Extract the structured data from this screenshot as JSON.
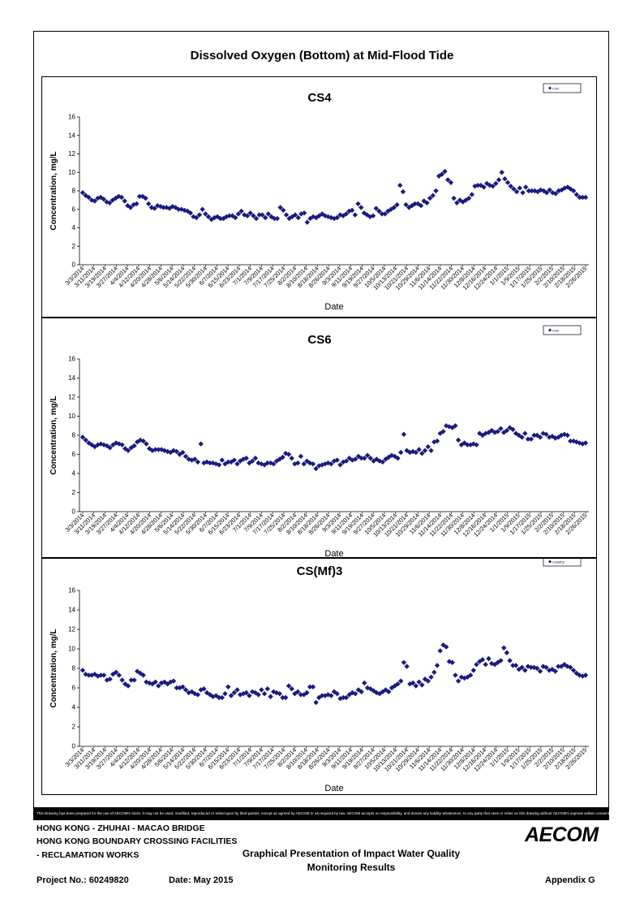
{
  "page": {
    "main_title": "Dissolved Oxygen (Bottom) at Mid-Flood Tide",
    "disclaimer": "This Drawing has been prepared for the use of AECOM's client. It may not be used, modified, reproduced or relied upon by third parties, except as agreed by AECOM or as required by law. AECOM accepts no responsibility, and denies any liability whatsoever, to any party that uses or relies on this drawing without AECOM's express written consent."
  },
  "footer": {
    "line1": "HONG KONG - ZHUHAI - MACAO BRIDGE",
    "line2": "HONG KONG BOUNDARY CROSSING FACILITIES",
    "line3": "- RECLAMATION WORKS",
    "center1": "Graphical Presentation of Impact Water Quality",
    "center2": "Monitoring Results",
    "project": "Project No.: 60249820",
    "date": "Date: May 2015",
    "appendix": "Appendix G",
    "logo": "AECOM"
  },
  "chart_data": [
    {
      "type": "scatter",
      "title": "CS4",
      "xlabel": "Date",
      "ylabel": "Concentration, mg/L",
      "ylim": [
        0,
        16
      ],
      "yticks": [
        0,
        2,
        4,
        6,
        8,
        10,
        12,
        14,
        16
      ],
      "xticks": [
        "3/3/2014",
        "3/11/2014",
        "3/19/2014",
        "3/27/2014",
        "4/4/2014",
        "4/12/2014",
        "4/20/2014",
        "4/28/2014",
        "5/6/2014",
        "5/14/2014",
        "5/22/2014",
        "5/30/2014",
        "6/7/2014",
        "6/15/2014",
        "6/23/2014",
        "7/1/2014",
        "7/9/2014",
        "7/17/2014",
        "7/25/2014",
        "8/2/2014",
        "8/10/2014",
        "8/18/2014",
        "8/26/2014",
        "9/3/2014",
        "9/11/2014",
        "9/19/2014",
        "9/27/2014",
        "10/5/2014",
        "10/13/2014",
        "10/21/2014",
        "10/29/2014",
        "11/6/2014",
        "11/14/2014",
        "11/22/2014",
        "11/30/2014",
        "12/8/2014",
        "12/16/2014",
        "12/24/2014",
        "1/1/2015",
        "1/9/2015",
        "1/17/2015",
        "1/25/2015",
        "2/2/2015",
        "2/10/2015",
        "2/18/2015",
        "2/26/2015"
      ],
      "legend": {
        "label": "CS4",
        "position": "top-right"
      },
      "grid": false,
      "series": [
        {
          "name": "CS4",
          "color": "#1a1a80",
          "marker": "diamond",
          "y": [
            7.8,
            7.5,
            7.3,
            7.0,
            6.9,
            7.2,
            7.3,
            7.1,
            6.8,
            6.7,
            7.0,
            7.2,
            7.4,
            7.3,
            6.9,
            6.4,
            6.2,
            6.5,
            6.6,
            7.4,
            7.4,
            7.2,
            6.6,
            6.2,
            6.1,
            6.4,
            6.3,
            6.2,
            6.2,
            6.1,
            6.3,
            6.2,
            6.0,
            6.0,
            5.9,
            5.8,
            5.6,
            5.2,
            5.1,
            5.4,
            6.0,
            5.5,
            5.2,
            4.9,
            5.1,
            5.2,
            5.0,
            5.0,
            5.2,
            5.3,
            5.3,
            5.1,
            5.5,
            5.8,
            5.4,
            5.3,
            5.6,
            5.3,
            5.0,
            5.4,
            5.4,
            5.1,
            5.5,
            5.2,
            5.0,
            5.0,
            6.2,
            5.9,
            5.4,
            5.0,
            5.2,
            5.4,
            5.1,
            5.5,
            5.6,
            4.6,
            5.0,
            5.2,
            5.1,
            5.3,
            5.5,
            5.3,
            5.2,
            5.1,
            5.0,
            5.1,
            5.4,
            5.3,
            5.5,
            5.8,
            5.9,
            5.4,
            6.6,
            6.2,
            5.6,
            5.4,
            5.2,
            5.3,
            6.1,
            5.8,
            5.5,
            5.5,
            5.8,
            6.0,
            6.2,
            6.5,
            8.6,
            7.9,
            6.5,
            6.2,
            6.4,
            6.6,
            6.6,
            6.4,
            6.9,
            6.7,
            7.2,
            7.5,
            8.0,
            9.6,
            9.8,
            10.1,
            9.2,
            8.9,
            7.2,
            6.7,
            7.0,
            6.8,
            7.0,
            7.2,
            7.6,
            8.5,
            8.6,
            8.6,
            8.4,
            8.8,
            8.6,
            8.5,
            8.8,
            9.2,
            10.0,
            9.3,
            8.9,
            8.5,
            8.2,
            7.9,
            8.3,
            7.8,
            8.4,
            8.0,
            8.0,
            8.0,
            7.9,
            8.1,
            8.0,
            7.8,
            8.1,
            7.8,
            7.7,
            8.0,
            8.1,
            8.3,
            8.4,
            8.2,
            8.0,
            7.6,
            7.3,
            7.3,
            7.3
          ]
        }
      ]
    },
    {
      "type": "scatter",
      "title": "CS6",
      "xlabel": "Date",
      "ylabel": "Concentration, mg/L",
      "ylim": [
        0,
        16
      ],
      "yticks": [
        0,
        2,
        4,
        6,
        8,
        10,
        12,
        14,
        16
      ],
      "xticks": [
        "3/3/2014",
        "3/11/2014",
        "3/19/2014",
        "3/27/2014",
        "4/4/2014",
        "4/12/2014",
        "4/20/2014",
        "4/28/2014",
        "5/6/2014",
        "5/14/2014",
        "5/22/2014",
        "5/30/2014",
        "6/7/2014",
        "6/15/2014",
        "6/23/2014",
        "7/1/2014",
        "7/9/2014",
        "7/17/2014",
        "7/25/2014",
        "8/2/2014",
        "8/10/2014",
        "8/18/2014",
        "8/26/2014",
        "9/3/2014",
        "9/11/2014",
        "9/19/2014",
        "9/27/2014",
        "10/5/2014",
        "10/13/2014",
        "10/21/2014",
        "10/29/2014",
        "11/6/2014",
        "11/14/2014",
        "11/22/2014",
        "11/30/2014",
        "12/8/2014",
        "12/16/2014",
        "12/24/2014",
        "1/1/2015",
        "1/9/2015",
        "1/17/2015",
        "1/25/2015",
        "2/2/2015",
        "2/10/2015",
        "2/18/2015",
        "2/26/2015"
      ],
      "legend": {
        "label": "CS6",
        "position": "top-right"
      },
      "grid": false,
      "series": [
        {
          "name": "CS6",
          "color": "#1a1a80",
          "marker": "diamond",
          "y": [
            7.8,
            7.5,
            7.2,
            7.0,
            6.8,
            7.0,
            7.1,
            7.0,
            6.9,
            6.7,
            7.0,
            7.2,
            7.1,
            7.0,
            6.6,
            6.4,
            6.7,
            6.9,
            7.3,
            7.5,
            7.4,
            7.1,
            6.6,
            6.4,
            6.5,
            6.5,
            6.5,
            6.4,
            6.3,
            6.2,
            6.4,
            6.3,
            6.0,
            6.2,
            5.8,
            5.5,
            5.4,
            5.5,
            5.2,
            7.1,
            5.1,
            5.2,
            5.1,
            5.1,
            5.0,
            4.9,
            5.4,
            5.0,
            5.2,
            5.2,
            5.4,
            5.0,
            5.3,
            5.5,
            5.6,
            5.1,
            5.3,
            5.6,
            5.1,
            5.0,
            4.9,
            5.1,
            5.1,
            5.0,
            5.3,
            5.5,
            5.7,
            6.1,
            6.0,
            5.6,
            5.0,
            5.1,
            5.8,
            5.0,
            5.3,
            5.1,
            5.0,
            4.5,
            4.8,
            4.9,
            5.0,
            5.1,
            5.0,
            5.3,
            5.4,
            4.9,
            5.2,
            5.3,
            5.6,
            5.4,
            5.5,
            5.8,
            5.6,
            5.6,
            5.9,
            5.6,
            5.3,
            5.5,
            5.3,
            5.2,
            5.5,
            5.7,
            5.9,
            5.8,
            5.6,
            6.2,
            8.1,
            6.4,
            6.2,
            6.3,
            6.2,
            6.5,
            6.1,
            6.4,
            6.8,
            6.4,
            7.3,
            7.4,
            8.2,
            8.4,
            9.0,
            8.9,
            8.8,
            9.0,
            7.5,
            7.0,
            7.2,
            7.0,
            7.0,
            7.1,
            7.0,
            8.2,
            8.0,
            8.2,
            8.3,
            8.5,
            8.3,
            8.4,
            8.7,
            8.3,
            8.5,
            8.8,
            8.6,
            8.2,
            8.0,
            7.8,
            8.2,
            7.6,
            7.6,
            8.0,
            8.0,
            7.8,
            8.2,
            8.1,
            7.8,
            7.9,
            7.7,
            7.8,
            8.0,
            8.1,
            8.0,
            7.4,
            7.4,
            7.3,
            7.2,
            7.1,
            7.2
          ]
        }
      ]
    },
    {
      "type": "scatter",
      "title": "CS(Mf)3",
      "xlabel": "Date",
      "ylabel": "Concentration, mg/L",
      "ylim": [
        0,
        16
      ],
      "yticks": [
        0,
        2,
        4,
        6,
        8,
        10,
        12,
        14,
        16
      ],
      "xticks": [
        "3/3/2014",
        "3/11/2014",
        "3/19/2014",
        "3/27/2014",
        "4/4/2014",
        "4/12/2014",
        "4/20/2014",
        "4/28/2014",
        "5/6/2014",
        "5/14/2014",
        "5/22/2014",
        "5/30/2014",
        "6/7/2014",
        "6/15/2014",
        "6/23/2014",
        "7/1/2014",
        "7/9/2014",
        "7/17/2014",
        "7/25/2014",
        "8/2/2014",
        "8/10/2014",
        "8/18/2014",
        "8/26/2014",
        "9/3/2014",
        "9/11/2014",
        "9/19/2014",
        "9/27/2014",
        "10/5/2014",
        "10/13/2014",
        "10/21/2014",
        "10/29/2014",
        "11/6/2014",
        "11/14/2014",
        "11/22/2014",
        "11/30/2014",
        "12/8/2014",
        "12/16/2014",
        "12/24/2014",
        "1/1/2015",
        "1/9/2015",
        "1/17/2015",
        "1/25/2015",
        "2/2/2015",
        "2/10/2015",
        "2/18/2015",
        "2/26/2015"
      ],
      "legend": {
        "label": "CS(Mf)3",
        "position": "top-right"
      },
      "grid": false,
      "series": [
        {
          "name": "CS(Mf)3",
          "color": "#1a1a80",
          "marker": "diamond",
          "y": [
            7.8,
            7.4,
            7.3,
            7.3,
            7.4,
            7.2,
            7.3,
            7.3,
            6.8,
            6.9,
            7.4,
            7.6,
            7.3,
            6.8,
            6.4,
            6.2,
            6.8,
            6.8,
            7.7,
            7.5,
            7.3,
            6.6,
            6.5,
            6.4,
            6.6,
            6.2,
            6.5,
            6.6,
            6.4,
            6.6,
            6.7,
            6.0,
            6.0,
            6.1,
            5.8,
            5.5,
            5.6,
            5.4,
            5.3,
            5.8,
            5.9,
            5.5,
            5.3,
            5.1,
            5.2,
            5.0,
            5.0,
            5.4,
            6.1,
            5.2,
            5.5,
            5.8,
            5.3,
            5.4,
            5.5,
            5.2,
            5.6,
            5.5,
            5.3,
            5.8,
            5.4,
            5.9,
            5.1,
            5.6,
            5.5,
            5.4,
            5.0,
            5.0,
            6.2,
            5.9,
            5.4,
            5.6,
            5.3,
            5.3,
            5.5,
            6.1,
            6.1,
            4.5,
            5.0,
            5.2,
            5.2,
            5.3,
            5.2,
            5.6,
            5.4,
            4.9,
            5.0,
            5.0,
            5.3,
            5.5,
            5.4,
            5.8,
            5.6,
            6.5,
            6.0,
            5.9,
            5.7,
            5.5,
            5.4,
            5.6,
            5.8,
            5.6,
            6.0,
            6.2,
            6.4,
            6.7,
            8.6,
            8.2,
            6.4,
            6.5,
            6.2,
            6.6,
            6.3,
            6.9,
            6.7,
            7.1,
            7.6,
            8.3,
            9.8,
            10.4,
            10.2,
            8.7,
            8.6,
            7.3,
            6.7,
            7.1,
            7.0,
            7.1,
            7.3,
            7.8,
            8.4,
            8.7,
            8.9,
            8.4,
            9.0,
            8.5,
            8.4,
            8.6,
            8.8,
            10.1,
            9.6,
            8.8,
            8.3,
            8.3,
            7.9,
            8.1,
            7.8,
            8.2,
            8.1,
            8.1,
            8.0,
            7.7,
            8.2,
            8.1,
            7.8,
            7.9,
            7.7,
            8.2,
            8.2,
            8.4,
            8.2,
            8.1,
            7.8,
            7.5,
            7.3,
            7.2,
            7.3
          ]
        }
      ]
    }
  ]
}
